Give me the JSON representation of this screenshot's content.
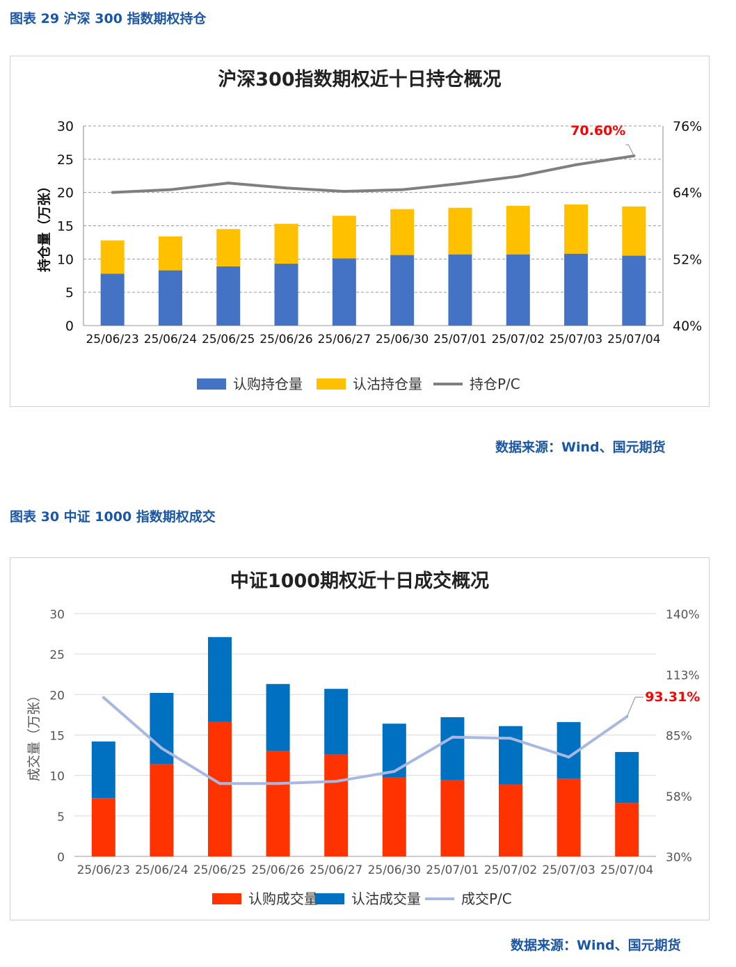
{
  "figures": [
    {
      "caption": "图表 29  沪深 300 指数期权持仓",
      "source": "数据来源：Wind、国元期货"
    },
    {
      "caption": "图表 30  中证 1000 指数期权成交",
      "source": "数据来源：Wind、国元期货"
    }
  ],
  "chart_data": [
    {
      "type": "bar",
      "stacked": true,
      "title": "沪深300指数期权近十日持仓概况",
      "ylabel": "持仓量（万张）",
      "ylim": [
        0,
        30
      ],
      "yticks": [
        0,
        5,
        10,
        15,
        20,
        25,
        30
      ],
      "y2lim": [
        40,
        76
      ],
      "y2ticks": [
        "40%",
        "52%",
        "64%",
        "76%"
      ],
      "y2tick_values": [
        40,
        52,
        64,
        76
      ],
      "grid": true,
      "legend_position": "bottom",
      "categories": [
        "25/06/23",
        "25/06/24",
        "25/06/25",
        "25/06/26",
        "25/06/27",
        "25/06/30",
        "25/07/01",
        "25/07/02",
        "25/07/03",
        "25/07/04"
      ],
      "series": [
        {
          "name": "认购持仓量",
          "kind": "bar",
          "color": "#4472c4",
          "values": [
            7.8,
            8.3,
            8.9,
            9.3,
            10.1,
            10.6,
            10.7,
            10.7,
            10.8,
            10.5
          ]
        },
        {
          "name": "认沽持仓量",
          "kind": "bar",
          "color": "#ffc000",
          "values": [
            5.0,
            5.1,
            5.6,
            6.0,
            6.4,
            6.9,
            7.0,
            7.3,
            7.4,
            7.4
          ]
        },
        {
          "name": "持仓P/C",
          "kind": "line",
          "axis": "right",
          "color": "#7f7f7f",
          "values": [
            64.0,
            64.5,
            65.7,
            64.8,
            64.2,
            64.5,
            65.6,
            66.9,
            69.0,
            70.6
          ]
        }
      ],
      "annotation": {
        "text": "70.60%",
        "index": 9,
        "color": "#ff0000"
      }
    },
    {
      "type": "bar",
      "stacked": true,
      "title": "中证1000期权近十日成交概况",
      "ylabel": "成交量（万张）",
      "ylim": [
        0,
        30
      ],
      "yticks": [
        0,
        5,
        10,
        15,
        20,
        25,
        30
      ],
      "y2lim": [
        30,
        140
      ],
      "y2ticks": [
        "30%",
        "58%",
        "85%",
        "113%",
        "140%"
      ],
      "y2tick_values": [
        30,
        57.5,
        85,
        112.5,
        140
      ],
      "grid": true,
      "legend_position": "bottom",
      "categories": [
        "25/06/23",
        "25/06/24",
        "25/06/25",
        "25/06/26",
        "25/06/27",
        "25/06/30",
        "25/07/01",
        "25/07/02",
        "25/07/03",
        "25/07/04"
      ],
      "series": [
        {
          "name": "认购成交量",
          "kind": "bar",
          "color": "#ff3300",
          "values": [
            7.2,
            11.4,
            16.6,
            13.0,
            12.6,
            9.8,
            9.4,
            8.9,
            9.6,
            6.6
          ]
        },
        {
          "name": "认沽成交量",
          "kind": "bar",
          "color": "#0070c0",
          "values": [
            7.0,
            8.8,
            10.5,
            8.3,
            8.1,
            6.6,
            7.8,
            7.2,
            7.0,
            6.3
          ]
        },
        {
          "name": "成交P/C",
          "kind": "line",
          "axis": "right",
          "color": "#a9b8e0",
          "values": [
            102,
            79,
            63,
            63,
            64,
            68.5,
            84,
            83.5,
            75,
            93.31
          ]
        }
      ],
      "annotation": {
        "text": "93.31%",
        "index": 9,
        "color": "#ff0000"
      }
    }
  ]
}
